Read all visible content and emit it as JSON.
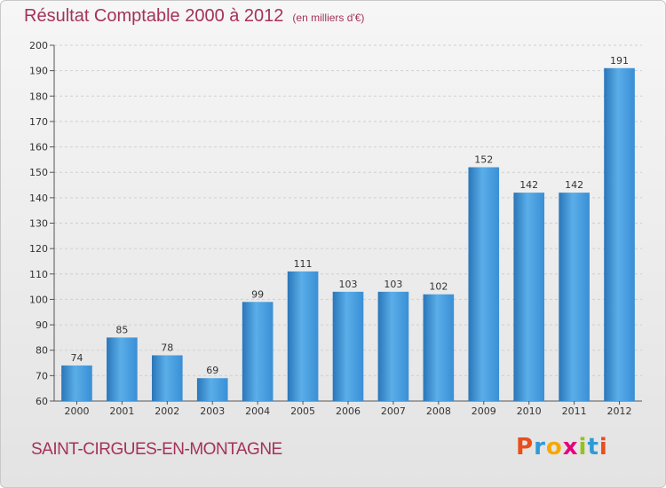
{
  "chart_data": {
    "type": "bar",
    "title": "Résultat Comptable 2000 à 2012",
    "subtitle": "(en milliers d'€)",
    "categories": [
      "2000",
      "2001",
      "2002",
      "2003",
      "2004",
      "2005",
      "2006",
      "2007",
      "2008",
      "2009",
      "2010",
      "2011",
      "2012"
    ],
    "values": [
      74,
      85,
      78,
      69,
      99,
      111,
      103,
      103,
      102,
      152,
      142,
      142,
      191
    ],
    "ylim": [
      60,
      200
    ],
    "yticks": [
      60,
      70,
      80,
      90,
      100,
      110,
      120,
      130,
      140,
      150,
      160,
      170,
      180,
      190,
      200
    ],
    "xlabel": "",
    "ylabel": "",
    "grid": true,
    "colors": {
      "bar": "#3a8fd6",
      "bar_light": "#5aaee8",
      "bar_dark": "#2a76b9"
    }
  },
  "footer": {
    "town": "SAINT-CIRGUES-EN-MONTAGNE",
    "logo": [
      "P",
      "r",
      "o",
      "x",
      "i",
      "t",
      "i"
    ]
  }
}
